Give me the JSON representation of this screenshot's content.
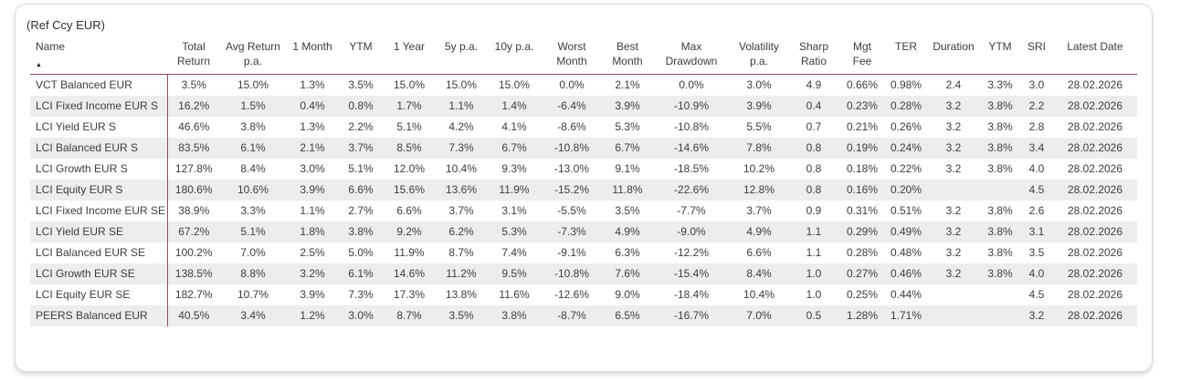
{
  "card": {
    "title": "(Ref Ccy EUR)"
  },
  "colors": {
    "accent_line": "#8d4d5a",
    "zebra_row": "#ededed",
    "text": "#3d3d3d"
  },
  "table": {
    "sort_indicator": "▲",
    "sort": {
      "column": "Name",
      "direction": "ascending"
    },
    "columns": [
      {
        "id": "name",
        "label": "Name"
      },
      {
        "id": "total-return",
        "label": "Total Return"
      },
      {
        "id": "avg-return-pa",
        "label": "Avg Return p.a."
      },
      {
        "id": "1-month",
        "label": "1 Month"
      },
      {
        "id": "ytm",
        "label": "YTM"
      },
      {
        "id": "1-year",
        "label": "1 Year"
      },
      {
        "id": "5y-pa",
        "label": "5y p.a."
      },
      {
        "id": "10y-pa",
        "label": "10y p.a."
      },
      {
        "id": "worst-month",
        "label": "Worst Month"
      },
      {
        "id": "best-month",
        "label": "Best Month"
      },
      {
        "id": "max-drawdown",
        "label": "Max Drawdown"
      },
      {
        "id": "volatility-pa",
        "label": "Volatility p.a."
      },
      {
        "id": "sharp-ratio",
        "label": "Sharp Ratio"
      },
      {
        "id": "mgt-fee",
        "label": "Mgt Fee"
      },
      {
        "id": "ter",
        "label": "TER"
      },
      {
        "id": "duration",
        "label": "Duration"
      },
      {
        "id": "ytm-2",
        "label": "YTM"
      },
      {
        "id": "sri",
        "label": "SRI"
      },
      {
        "id": "latest-date",
        "label": "Latest Date"
      }
    ],
    "rows": [
      {
        "cells": [
          "VCT Balanced EUR",
          "3.5%",
          "15.0%",
          "1.3%",
          "3.5%",
          "15.0%",
          "15.0%",
          "15.0%",
          "0.0%",
          "2.1%",
          "0.0%",
          "3.0%",
          "4.9",
          "0.66%",
          "0.98%",
          "2.4",
          "3.3%",
          "3.0",
          "28.02.2026"
        ]
      },
      {
        "cells": [
          "LCI Fixed Income EUR S",
          "16.2%",
          "1.5%",
          "0.4%",
          "0.8%",
          "1.7%",
          "1.1%",
          "1.4%",
          "-6.4%",
          "3.9%",
          "-10.9%",
          "3.9%",
          "0.4",
          "0.23%",
          "0.28%",
          "3.2",
          "3.8%",
          "2.2",
          "28.02.2026"
        ]
      },
      {
        "cells": [
          "LCI Yield EUR S",
          "46.6%",
          "3.8%",
          "1.3%",
          "2.2%",
          "5.1%",
          "4.2%",
          "4.1%",
          "-8.6%",
          "5.3%",
          "-10.8%",
          "5.5%",
          "0.7",
          "0.21%",
          "0.26%",
          "3.2",
          "3.8%",
          "2.8",
          "28.02.2026"
        ]
      },
      {
        "cells": [
          "LCI Balanced EUR S",
          "83.5%",
          "6.1%",
          "2.1%",
          "3.7%",
          "8.5%",
          "7.3%",
          "6.7%",
          "-10.8%",
          "6.7%",
          "-14.6%",
          "7.8%",
          "0.8",
          "0.19%",
          "0.24%",
          "3.2",
          "3.8%",
          "3.4",
          "28.02.2026"
        ]
      },
      {
        "cells": [
          "LCI Growth EUR S",
          "127.8%",
          "8.4%",
          "3.0%",
          "5.1%",
          "12.0%",
          "10.4%",
          "9.3%",
          "-13.0%",
          "9.1%",
          "-18.5%",
          "10.2%",
          "0.8",
          "0.18%",
          "0.22%",
          "3.2",
          "3.8%",
          "4.0",
          "28.02.2026"
        ]
      },
      {
        "cells": [
          "LCI Equity EUR S",
          "180.6%",
          "10.6%",
          "3.9%",
          "6.6%",
          "15.6%",
          "13.6%",
          "11.9%",
          "-15.2%",
          "11.8%",
          "-22.6%",
          "12.8%",
          "0.8",
          "0.16%",
          "0.20%",
          "",
          "",
          "4.5",
          "28.02.2026"
        ]
      },
      {
        "cells": [
          "LCI Fixed Income EUR SE",
          "38.9%",
          "3.3%",
          "1.1%",
          "2.7%",
          "6.6%",
          "3.7%",
          "3.1%",
          "-5.5%",
          "3.5%",
          "-7.7%",
          "3.7%",
          "0.9",
          "0.31%",
          "0.51%",
          "3.2",
          "3.8%",
          "2.6",
          "28.02.2026"
        ]
      },
      {
        "cells": [
          "LCI Yield EUR SE",
          "67.2%",
          "5.1%",
          "1.8%",
          "3.8%",
          "9.2%",
          "6.2%",
          "5.3%",
          "-7.3%",
          "4.9%",
          "-9.0%",
          "4.9%",
          "1.1",
          "0.29%",
          "0.49%",
          "3.2",
          "3.8%",
          "3.1",
          "28.02.2026"
        ]
      },
      {
        "cells": [
          "LCI Balanced EUR SE",
          "100.2%",
          "7.0%",
          "2.5%",
          "5.0%",
          "11.9%",
          "8.7%",
          "7.4%",
          "-9.1%",
          "6.3%",
          "-12.2%",
          "6.6%",
          "1.1",
          "0.28%",
          "0.48%",
          "3.2",
          "3.8%",
          "3.5",
          "28.02.2026"
        ]
      },
      {
        "cells": [
          "LCI Growth EUR SE",
          "138.5%",
          "8.8%",
          "3.2%",
          "6.1%",
          "14.6%",
          "11.2%",
          "9.5%",
          "-10.8%",
          "7.6%",
          "-15.4%",
          "8.4%",
          "1.0",
          "0.27%",
          "0.46%",
          "3.2",
          "3.8%",
          "4.0",
          "28.02.2026"
        ]
      },
      {
        "cells": [
          "LCI Equity EUR SE",
          "182.7%",
          "10.7%",
          "3.9%",
          "7.3%",
          "17.3%",
          "13.8%",
          "11.6%",
          "-12.6%",
          "9.0%",
          "-18.4%",
          "10.4%",
          "1.0",
          "0.25%",
          "0.44%",
          "",
          "",
          "4.5",
          "28.02.2026"
        ]
      },
      {
        "cells": [
          "PEERS Balanced EUR",
          "40.5%",
          "3.4%",
          "1.2%",
          "3.0%",
          "8.7%",
          "3.5%",
          "3.8%",
          "-8.7%",
          "6.5%",
          "-16.7%",
          "7.0%",
          "0.5",
          "1.28%",
          "1.71%",
          "",
          "",
          "3.2",
          "28.02.2026"
        ]
      }
    ]
  }
}
